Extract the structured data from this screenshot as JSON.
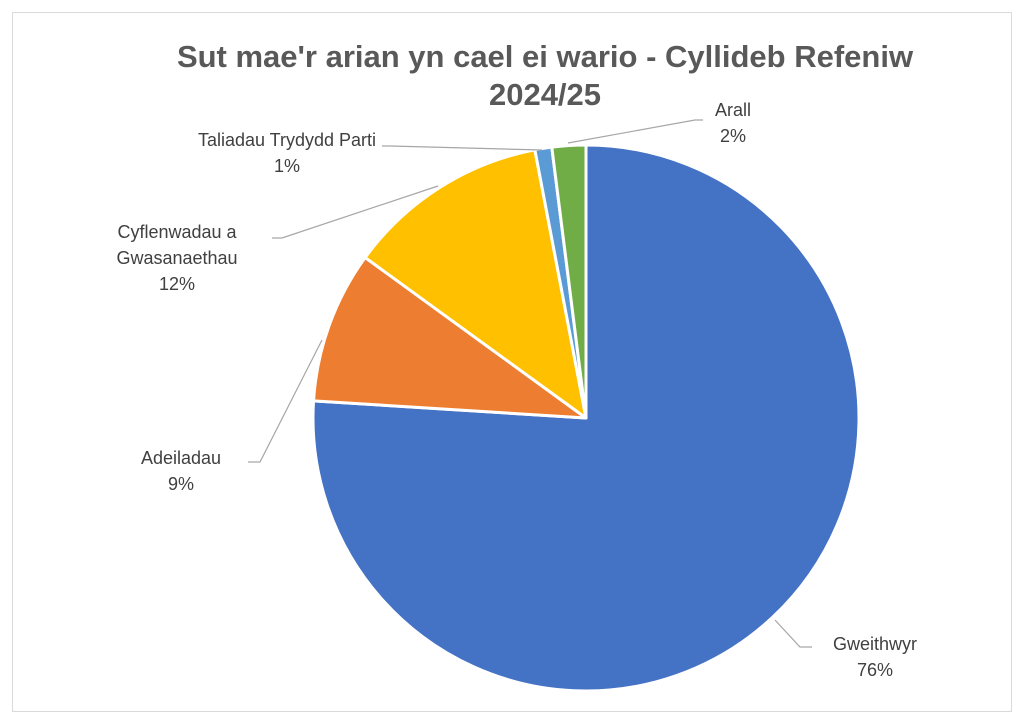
{
  "chart_data": {
    "type": "pie",
    "title": "Sut mae'r arian yn cael ei wario - Cyllideb Refeniw 2024/25",
    "categories": [
      "Gweithwyr",
      "Adeiladau",
      "Cyflenwadau a Gwasanaethau",
      "Taliadau Trydydd Parti",
      "Arall"
    ],
    "values": [
      76,
      9,
      12,
      1,
      2
    ],
    "value_labels": [
      "76%",
      "9%",
      "12%",
      "1%",
      "2%"
    ],
    "colors": [
      "#4472c4",
      "#ed7d31",
      "#ffc000",
      "#5b9bd5",
      "#70ad47"
    ]
  }
}
